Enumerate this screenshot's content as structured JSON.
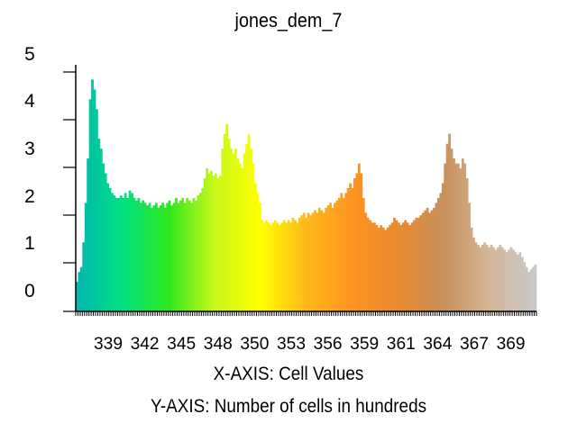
{
  "chart_data": {
    "type": "bar",
    "title": "jones_dem_7",
    "xlabel": "X-AXIS: Cell Values",
    "ylabel": "Y-AXIS: Number of cells in hundreds",
    "x_ticks": [
      "339",
      "342",
      "345",
      "348",
      "350",
      "353",
      "356",
      "359",
      "361",
      "364",
      "367",
      "369"
    ],
    "y_ticks": [
      "0",
      "1",
      "2",
      "3",
      "4",
      "5"
    ],
    "ylim": [
      0,
      5
    ],
    "grid": false,
    "color_ramp": [
      "#00b8b0",
      "#00e080",
      "#2ee81e",
      "#c8f81a",
      "#ffff00",
      "#ffb81a",
      "#ff9420",
      "#e88a30",
      "#c8905a",
      "#d4b698",
      "#c8c8c8"
    ],
    "bar_values": [
      0.6,
      0.8,
      0.9,
      1.4,
      2.2,
      3.1,
      4.3,
      4.7,
      4.5,
      4.1,
      3.5,
      3.3,
      3.0,
      2.8,
      2.6,
      2.5,
      2.4,
      2.35,
      2.3,
      2.3,
      2.35,
      2.3,
      2.4,
      2.3,
      2.45,
      2.4,
      2.3,
      2.25,
      2.3,
      2.2,
      2.25,
      2.2,
      2.15,
      2.2,
      2.1,
      2.15,
      2.2,
      2.1,
      2.15,
      2.2,
      2.1,
      2.2,
      2.25,
      2.15,
      2.2,
      2.3,
      2.2,
      2.25,
      2.3,
      2.2,
      2.3,
      2.25,
      2.2,
      2.3,
      2.25,
      2.35,
      2.4,
      2.5,
      2.7,
      2.9,
      2.8,
      2.85,
      2.75,
      2.8,
      2.7,
      2.75,
      3.3,
      3.6,
      3.8,
      3.5,
      3.3,
      3.2,
      3.3,
      3.1,
      3.0,
      2.9,
      3.2,
      3.4,
      3.6,
      3.3,
      3.0,
      2.6,
      2.4,
      2.2,
      1.85,
      1.8,
      1.85,
      1.8,
      1.75,
      1.8,
      1.85,
      1.8,
      1.75,
      1.8,
      1.85,
      1.8,
      1.85,
      1.8,
      1.9,
      1.85,
      1.8,
      1.9,
      1.95,
      2.0,
      1.9,
      2.0,
      1.95,
      2.0,
      2.05,
      2.0,
      2.1,
      2.05,
      2.0,
      2.1,
      2.15,
      2.2,
      2.1,
      2.2,
      2.25,
      2.3,
      2.4,
      2.3,
      2.4,
      2.5,
      2.6,
      2.5,
      2.7,
      2.8,
      3.0,
      2.8,
      2.3,
      2.0,
      1.9,
      1.85,
      1.8,
      1.8,
      1.75,
      1.7,
      1.75,
      1.7,
      1.65,
      1.7,
      1.75,
      1.8,
      1.9,
      1.85,
      1.8,
      1.75,
      1.8,
      1.85,
      1.8,
      1.75,
      1.8,
      1.85,
      1.9,
      1.9,
      1.95,
      2.0,
      2.05,
      2.1,
      2.0,
      2.05,
      2.1,
      2.2,
      2.3,
      2.4,
      2.6,
      3.0,
      3.4,
      3.6,
      3.3,
      3.1,
      3.0,
      3.0,
      2.9,
      3.1,
      3.0,
      2.7,
      2.2,
      1.7,
      1.5,
      1.4,
      1.35,
      1.3,
      1.35,
      1.4,
      1.35,
      1.3,
      1.35,
      1.3,
      1.25,
      1.3,
      1.35,
      1.3,
      1.25,
      1.2,
      1.25,
      1.3,
      1.25,
      1.2,
      1.15,
      1.2,
      1.1,
      1.0,
      0.9,
      0.8,
      0.85,
      0.9,
      0.95
    ]
  }
}
